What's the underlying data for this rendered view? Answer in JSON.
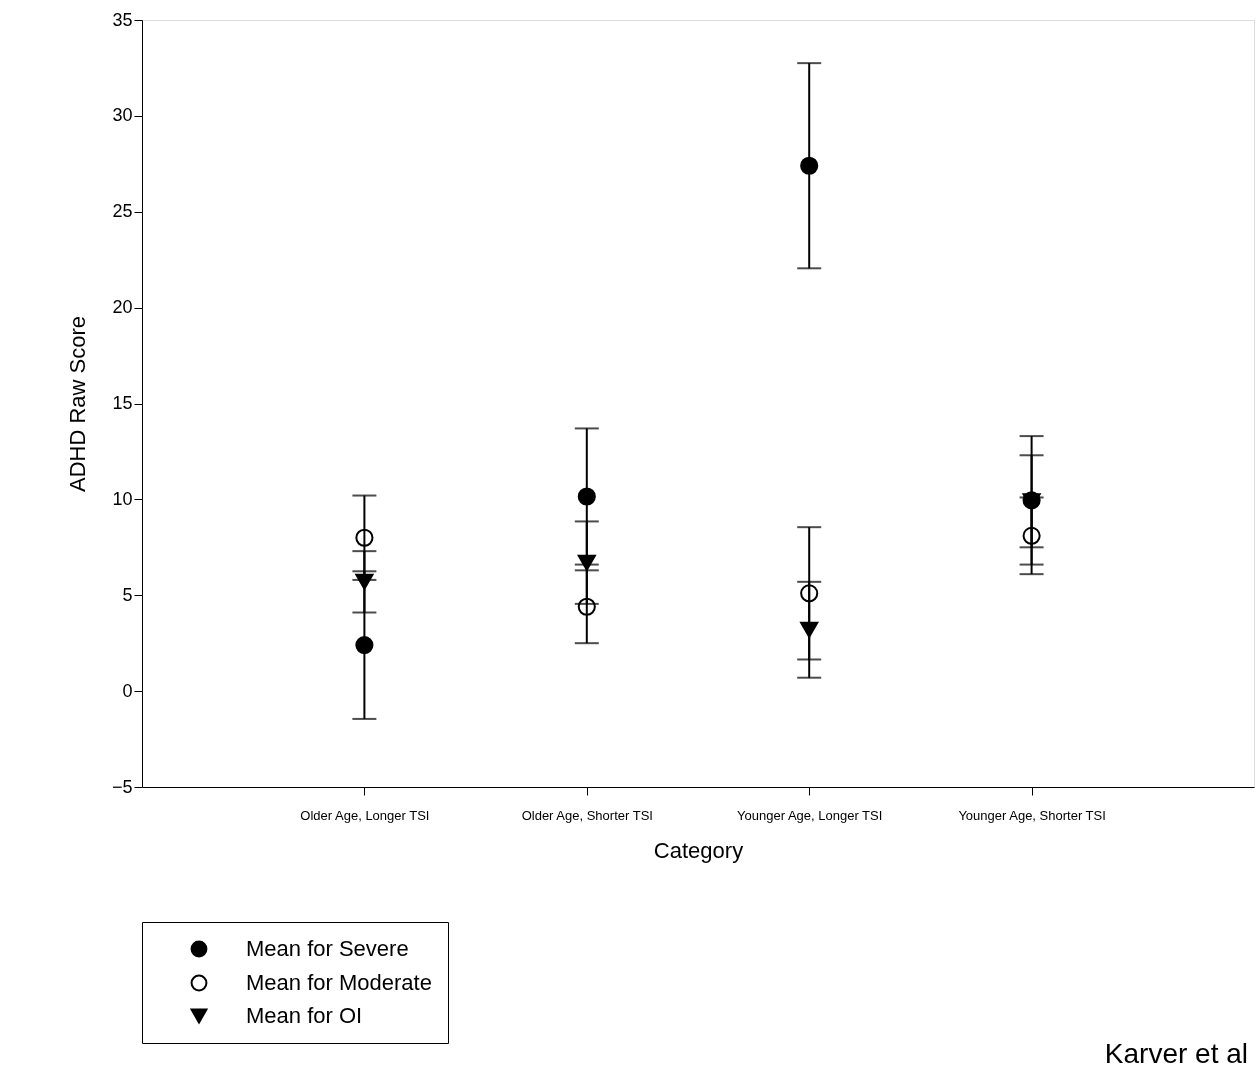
{
  "chart_data": {
    "type": "scatter",
    "xlabel": "Category",
    "ylabel": "ADHD Raw Score",
    "categories": [
      "Older Age, Longer TSI",
      "Older Age, Shorter TSI",
      "Younger Age, Longer TSI",
      "Younger Age, Shorter TSI"
    ],
    "series": [
      {
        "name": "Mean for Severe",
        "color": "#000000",
        "marker": "circle",
        "values": [
          2.4,
          10.15,
          27.4,
          9.95
        ],
        "errors": [
          3.85,
          3.55,
          5.35,
          3.35
        ]
      },
      {
        "name": "Mean for Moderate",
        "color": "#ffffff",
        "marker": "circle",
        "values": [
          8.0,
          4.4,
          5.1,
          8.1
        ],
        "errors": [
          2.2,
          1.9,
          3.45,
          2.0
        ]
      },
      {
        "name": "Mean for OI",
        "color": "#000000",
        "marker": "triangle",
        "values": [
          5.7,
          6.7,
          3.2,
          9.9
        ],
        "errors": [
          1.6,
          2.15,
          2.5,
          2.4
        ]
      }
    ],
    "ylim": [
      -5,
      35
    ],
    "yticks": [
      -5,
      0,
      5,
      10,
      15,
      20,
      25,
      30,
      35
    ],
    "grid": false,
    "legend": "bottom left",
    "annotations": [
      "Karver et al"
    ]
  }
}
